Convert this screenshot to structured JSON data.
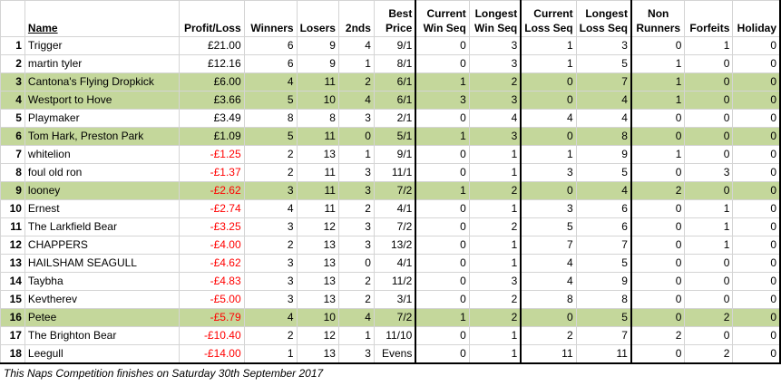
{
  "headers": {
    "rank": "",
    "name": "Name",
    "profit_loss": "Profit/Loss",
    "winners": "Winners",
    "losers": "Losers",
    "seconds": "2nds",
    "best_price": [
      "Best",
      "Price"
    ],
    "current_win_seq": [
      "Current",
      "Win Seq"
    ],
    "longest_win_seq": [
      "Longest",
      "Win Seq"
    ],
    "current_loss_seq": [
      "Current",
      "Loss Seq"
    ],
    "longest_loss_seq": [
      "Longest",
      "Loss Seq"
    ],
    "non_runners": [
      "Non",
      "Runners"
    ],
    "forfeits": "Forfeits",
    "holiday": "Holiday"
  },
  "rows": [
    {
      "rank": "1",
      "name": "Trigger",
      "pl": "£21.00",
      "w": "6",
      "l": "9",
      "s": "4",
      "bp": "9/1",
      "cws": "0",
      "lws": "3",
      "cls": "1",
      "lls": "3",
      "nr": "0",
      "f": "1",
      "h": "0",
      "neg": false,
      "hl": false
    },
    {
      "rank": "2",
      "name": "martin tyler",
      "pl": "£12.16",
      "w": "6",
      "l": "9",
      "s": "1",
      "bp": "8/1",
      "cws": "0",
      "lws": "3",
      "cls": "1",
      "lls": "5",
      "nr": "1",
      "f": "0",
      "h": "0",
      "neg": false,
      "hl": false
    },
    {
      "rank": "3",
      "name": "Cantona's Flying Dropkick",
      "pl": "£6.00",
      "w": "4",
      "l": "11",
      "s": "2",
      "bp": "6/1",
      "cws": "1",
      "lws": "2",
      "cls": "0",
      "lls": "7",
      "nr": "1",
      "f": "0",
      "h": "0",
      "neg": false,
      "hl": true
    },
    {
      "rank": "4",
      "name": "Westport to Hove",
      "pl": "£3.66",
      "w": "5",
      "l": "10",
      "s": "4",
      "bp": "6/1",
      "cws": "3",
      "lws": "3",
      "cls": "0",
      "lls": "4",
      "nr": "1",
      "f": "0",
      "h": "0",
      "neg": false,
      "hl": true
    },
    {
      "rank": "5",
      "name": "Playmaker",
      "pl": "£3.49",
      "w": "8",
      "l": "8",
      "s": "3",
      "bp": "2/1",
      "cws": "0",
      "lws": "4",
      "cls": "4",
      "lls": "4",
      "nr": "0",
      "f": "0",
      "h": "0",
      "neg": false,
      "hl": false
    },
    {
      "rank": "6",
      "name": "Tom Hark, Preston Park",
      "pl": "£1.09",
      "w": "5",
      "l": "11",
      "s": "0",
      "bp": "5/1",
      "cws": "1",
      "lws": "3",
      "cls": "0",
      "lls": "8",
      "nr": "0",
      "f": "0",
      "h": "0",
      "neg": false,
      "hl": true
    },
    {
      "rank": "7",
      "name": "whitelion",
      "pl": "-£1.25",
      "w": "2",
      "l": "13",
      "s": "1",
      "bp": "9/1",
      "cws": "0",
      "lws": "1",
      "cls": "1",
      "lls": "9",
      "nr": "1",
      "f": "0",
      "h": "0",
      "neg": true,
      "hl": false
    },
    {
      "rank": "8",
      "name": "foul old ron",
      "pl": "-£1.37",
      "w": "2",
      "l": "11",
      "s": "3",
      "bp": "11/1",
      "cws": "0",
      "lws": "1",
      "cls": "3",
      "lls": "5",
      "nr": "0",
      "f": "3",
      "h": "0",
      "neg": true,
      "hl": false
    },
    {
      "rank": "9",
      "name": "looney",
      "pl": "-£2.62",
      "w": "3",
      "l": "11",
      "s": "3",
      "bp": "7/2",
      "cws": "1",
      "lws": "2",
      "cls": "0",
      "lls": "4",
      "nr": "2",
      "f": "0",
      "h": "0",
      "neg": true,
      "hl": true
    },
    {
      "rank": "10",
      "name": "Ernest",
      "pl": "-£2.74",
      "w": "4",
      "l": "11",
      "s": "2",
      "bp": "4/1",
      "cws": "0",
      "lws": "1",
      "cls": "3",
      "lls": "6",
      "nr": "0",
      "f": "1",
      "h": "0",
      "neg": true,
      "hl": false
    },
    {
      "rank": "11",
      "name": "The Larkfield Bear",
      "pl": "-£3.25",
      "w": "3",
      "l": "12",
      "s": "3",
      "bp": "7/2",
      "cws": "0",
      "lws": "2",
      "cls": "5",
      "lls": "6",
      "nr": "0",
      "f": "1",
      "h": "0",
      "neg": true,
      "hl": false
    },
    {
      "rank": "12",
      "name": "CHAPPERS",
      "pl": "-£4.00",
      "w": "2",
      "l": "13",
      "s": "3",
      "bp": "13/2",
      "cws": "0",
      "lws": "1",
      "cls": "7",
      "lls": "7",
      "nr": "0",
      "f": "1",
      "h": "0",
      "neg": true,
      "hl": false
    },
    {
      "rank": "13",
      "name": "HAILSHAM SEAGULL",
      "pl": "-£4.62",
      "w": "3",
      "l": "13",
      "s": "0",
      "bp": "4/1",
      "cws": "0",
      "lws": "1",
      "cls": "4",
      "lls": "5",
      "nr": "0",
      "f": "0",
      "h": "0",
      "neg": true,
      "hl": false
    },
    {
      "rank": "14",
      "name": "Taybha",
      "pl": "-£4.83",
      "w": "3",
      "l": "13",
      "s": "2",
      "bp": "11/2",
      "cws": "0",
      "lws": "3",
      "cls": "4",
      "lls": "9",
      "nr": "0",
      "f": "0",
      "h": "0",
      "neg": true,
      "hl": false
    },
    {
      "rank": "15",
      "name": "Kevtherev",
      "pl": "-£5.00",
      "w": "3",
      "l": "13",
      "s": "2",
      "bp": "3/1",
      "cws": "0",
      "lws": "2",
      "cls": "8",
      "lls": "8",
      "nr": "0",
      "f": "0",
      "h": "0",
      "neg": true,
      "hl": false
    },
    {
      "rank": "16",
      "name": "Petee",
      "pl": "-£5.79",
      "w": "4",
      "l": "10",
      "s": "4",
      "bp": "7/2",
      "cws": "1",
      "lws": "2",
      "cls": "0",
      "lls": "5",
      "nr": "0",
      "f": "2",
      "h": "0",
      "neg": true,
      "hl": true
    },
    {
      "rank": "17",
      "name": "The Brighton Bear",
      "pl": "-£10.40",
      "w": "2",
      "l": "12",
      "s": "1",
      "bp": "11/10",
      "cws": "0",
      "lws": "1",
      "cls": "2",
      "lls": "7",
      "nr": "2",
      "f": "0",
      "h": "0",
      "neg": true,
      "hl": false
    },
    {
      "rank": "18",
      "name": "Leegull",
      "pl": "-£14.00",
      "w": "1",
      "l": "13",
      "s": "3",
      "bp": "Evens",
      "cws": "0",
      "lws": "1",
      "cls": "11",
      "lls": "11",
      "nr": "0",
      "f": "2",
      "h": "0",
      "neg": true,
      "hl": false
    }
  ],
  "footer": "This Naps Competition finishes on Saturday 30th September 2017",
  "colors": {
    "highlight": "#c4d79b",
    "negative": "#ff0000",
    "border": "#000000"
  }
}
